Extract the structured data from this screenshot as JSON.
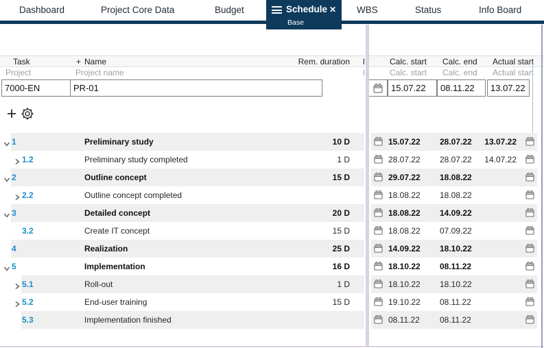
{
  "tabs": {
    "items": [
      {
        "label": "Dashboard"
      },
      {
        "label": "Project Core Data"
      },
      {
        "label": "Budget"
      },
      {
        "label": "Schedule",
        "sub": "Base",
        "active": true
      },
      {
        "label": "WBS"
      },
      {
        "label": "Status"
      },
      {
        "label": "Info Board"
      }
    ]
  },
  "columns": {
    "task": "Task",
    "name_add": "+",
    "name": "Name",
    "rem_duration": "Rem. duration",
    "clipped_fragment": "l",
    "calc_start": "Calc. start",
    "calc_end": "Calc. end",
    "actual_start": "Actual start"
  },
  "filters": {
    "project_label": "Project",
    "project_name_label": "Project name",
    "project_value": "7000-EN",
    "project_name_value": "PR-01",
    "calc_start_label": "Calc. start",
    "calc_end_label": "Calc. end",
    "actual_start_label": "Actual start",
    "calc_start_value": "15.07.22",
    "calc_end_value": "08.11.22",
    "actual_start_value": "13.07.22"
  },
  "toolbar": {
    "add_glyph": "+"
  },
  "icons": {
    "hamburger": "☰",
    "close": "✕",
    "add": "plus-icon",
    "settings": "gear-icon",
    "calendar": "calendar-icon",
    "expand_open": "chevron-down-icon",
    "expand_closed": "chevron-right-icon"
  },
  "colors": {
    "accent_navy": "#0e3a5c",
    "task_number_blue": "#1b8dc9",
    "row_stripe": "#efefef",
    "splitter_purple": "#d9d2e2",
    "pane_edge_slate": "#96a0b5",
    "input_border": "#808080"
  },
  "tasks": [
    {
      "num": "1",
      "name": "Preliminary study",
      "duration": "10 D",
      "calc_start": "15.07.22",
      "calc_end": "28.07.22",
      "actual_start": "13.07.22",
      "level": 1,
      "expander": "down",
      "summary": true
    },
    {
      "num": "1.2",
      "name": "Preliminary study completed",
      "duration": "1 D",
      "calc_start": "28.07.22",
      "calc_end": "28.07.22",
      "actual_start": "14.07.22",
      "level": 2,
      "expander": "right",
      "summary": false
    },
    {
      "num": "2",
      "name": "Outline concept",
      "duration": "15 D",
      "calc_start": "29.07.22",
      "calc_end": "18.08.22",
      "actual_start": "",
      "level": 1,
      "expander": "down",
      "summary": true
    },
    {
      "num": "2.2",
      "name": "Outline concept completed",
      "duration": "",
      "calc_start": "18.08.22",
      "calc_end": "18.08.22",
      "actual_start": "",
      "level": 2,
      "expander": "right",
      "summary": false
    },
    {
      "num": "3",
      "name": "Detailed concept",
      "duration": "20 D",
      "calc_start": "18.08.22",
      "calc_end": "14.09.22",
      "actual_start": "",
      "level": 1,
      "expander": "down",
      "summary": true
    },
    {
      "num": "3.2",
      "name": "Create IT concept",
      "duration": "15 D",
      "calc_start": "18.08.22",
      "calc_end": "07.09.22",
      "actual_start": "",
      "level": 2,
      "expander": "none",
      "summary": false
    },
    {
      "num": "4",
      "name": "Realization",
      "duration": "25 D",
      "calc_start": "14.09.22",
      "calc_end": "18.10.22",
      "actual_start": "",
      "level": 1,
      "expander": "none",
      "summary": true
    },
    {
      "num": "5",
      "name": "Implementation",
      "duration": "16 D",
      "calc_start": "18.10.22",
      "calc_end": "08.11.22",
      "actual_start": "",
      "level": 1,
      "expander": "down",
      "summary": true
    },
    {
      "num": "5.1",
      "name": "Roll-out",
      "duration": "1 D",
      "calc_start": "18.10.22",
      "calc_end": "18.10.22",
      "actual_start": "",
      "level": 2,
      "expander": "right",
      "summary": false
    },
    {
      "num": "5.2",
      "name": "End-user training",
      "duration": "15 D",
      "calc_start": "19.10.22",
      "calc_end": "08.11.22",
      "actual_start": "",
      "level": 2,
      "expander": "right",
      "summary": false
    },
    {
      "num": "5.3",
      "name": "Implementation finished",
      "duration": "",
      "calc_start": "08.11.22",
      "calc_end": "08.11.22",
      "actual_start": "",
      "level": 2,
      "expander": "none",
      "summary": false
    }
  ]
}
